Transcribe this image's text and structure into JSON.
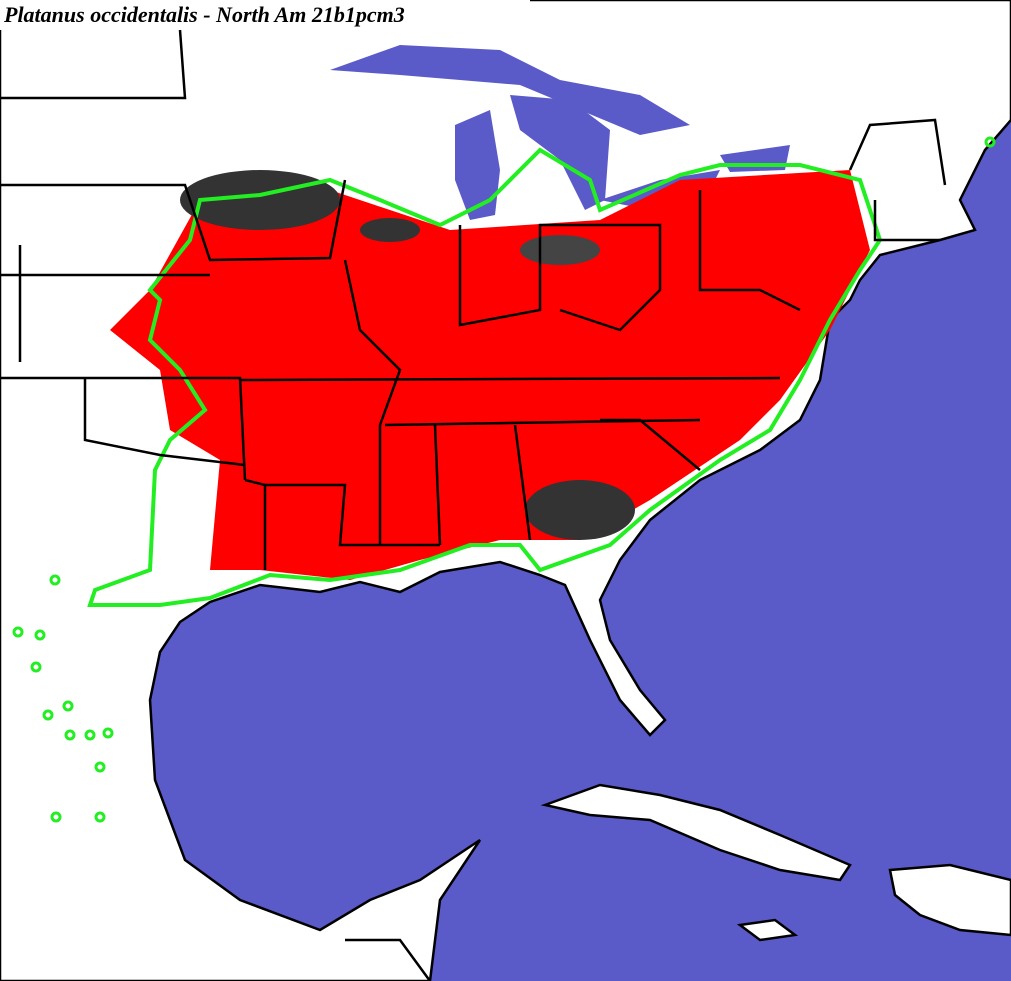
{
  "title": "Platanus occidentalis - North Am 21b1pcm3"
}
